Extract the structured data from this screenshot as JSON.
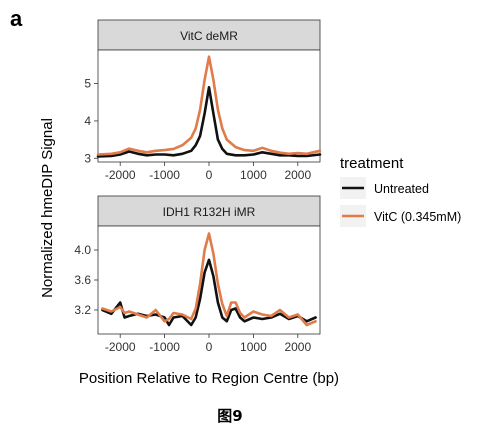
{
  "panel_label": "a",
  "caption": "图9",
  "colors": {
    "untreated": "#111111",
    "vitc": "#e07b4a",
    "strip_bg": "#d9d9d9"
  },
  "legend": {
    "title": "treatment",
    "entries": [
      "Untreated",
      "VitC (0.345mM)"
    ]
  },
  "chart_data": [
    {
      "type": "line",
      "title": "VitC deMR",
      "xlabel": "Position Relative to Region Centre (bp)",
      "ylabel": "Normalized hmeDIP Signal",
      "xlim": [
        -2500,
        2500
      ],
      "ylim": [
        2.9,
        5.9
      ],
      "xticks": [
        -2000,
        -1000,
        0,
        1000,
        2000
      ],
      "xtick_labels": [
        "-2000",
        "-1000",
        "0",
        "1000",
        "2000"
      ],
      "yticks": [
        3,
        4,
        5
      ],
      "ytick_labels": [
        "3",
        "4",
        "5"
      ],
      "grid": false,
      "legend_position": "right",
      "x": [
        -2500,
        -2200,
        -2000,
        -1800,
        -1600,
        -1400,
        -1200,
        -1000,
        -800,
        -600,
        -400,
        -300,
        -200,
        -100,
        0,
        100,
        200,
        300,
        400,
        600,
        800,
        1000,
        1200,
        1400,
        1600,
        1800,
        2000,
        2200,
        2500
      ],
      "series": [
        {
          "name": "Untreated",
          "values": [
            3.05,
            3.06,
            3.1,
            3.18,
            3.12,
            3.08,
            3.1,
            3.1,
            3.08,
            3.12,
            3.2,
            3.35,
            3.6,
            4.2,
            4.9,
            4.2,
            3.5,
            3.25,
            3.12,
            3.08,
            3.08,
            3.1,
            3.16,
            3.12,
            3.08,
            3.08,
            3.06,
            3.06,
            3.1
          ]
        },
        {
          "name": "VitC (0.345mM)",
          "values": [
            3.1,
            3.12,
            3.16,
            3.26,
            3.2,
            3.16,
            3.2,
            3.22,
            3.25,
            3.35,
            3.55,
            3.8,
            4.3,
            5.1,
            5.72,
            5.1,
            4.3,
            3.8,
            3.5,
            3.3,
            3.22,
            3.2,
            3.28,
            3.2,
            3.15,
            3.12,
            3.14,
            3.12,
            3.2
          ]
        }
      ]
    },
    {
      "type": "line",
      "title": "IDH1 R132H iMR",
      "xlabel": "Position Relative to Region Centre (bp)",
      "ylabel": "Normalized hmeDIP Signal",
      "xlim": [
        -2500,
        2500
      ],
      "ylim": [
        2.88,
        4.32
      ],
      "xticks": [
        -2000,
        -1000,
        0,
        1000,
        2000
      ],
      "xtick_labels": [
        "-2000",
        "-1000",
        "0",
        "1000",
        "2000"
      ],
      "yticks": [
        3.2,
        3.6,
        4.0
      ],
      "ytick_labels": [
        "3.2",
        "3.6",
        "4.0"
      ],
      "grid": false,
      "legend_position": "right",
      "x": [
        -2400,
        -2200,
        -2000,
        -1900,
        -1800,
        -1600,
        -1400,
        -1200,
        -1000,
        -900,
        -800,
        -600,
        -400,
        -300,
        -200,
        -100,
        0,
        100,
        200,
        300,
        400,
        500,
        600,
        700,
        800,
        1000,
        1200,
        1400,
        1600,
        1800,
        2000,
        2200,
        2400
      ],
      "series": [
        {
          "name": "Untreated",
          "values": [
            3.2,
            3.15,
            3.3,
            3.1,
            3.12,
            3.15,
            3.12,
            3.14,
            3.1,
            3.0,
            3.1,
            3.12,
            3.0,
            3.1,
            3.35,
            3.7,
            3.87,
            3.65,
            3.3,
            3.1,
            3.05,
            3.2,
            3.22,
            3.1,
            3.05,
            3.1,
            3.08,
            3.1,
            3.15,
            3.08,
            3.12,
            3.05,
            3.1
          ]
        },
        {
          "name": "VitC (0.345mM)",
          "values": [
            3.22,
            3.18,
            3.24,
            3.16,
            3.18,
            3.14,
            3.1,
            3.2,
            3.05,
            3.08,
            3.16,
            3.14,
            3.08,
            3.22,
            3.55,
            4.0,
            4.22,
            3.95,
            3.55,
            3.28,
            3.12,
            3.3,
            3.3,
            3.16,
            3.1,
            3.18,
            3.14,
            3.12,
            3.2,
            3.1,
            3.14,
            3.0,
            3.05
          ]
        }
      ]
    }
  ],
  "axis_titles": {
    "x": "Position Relative to Region Centre (bp)",
    "y": "Normalized hmeDIP Signal"
  }
}
